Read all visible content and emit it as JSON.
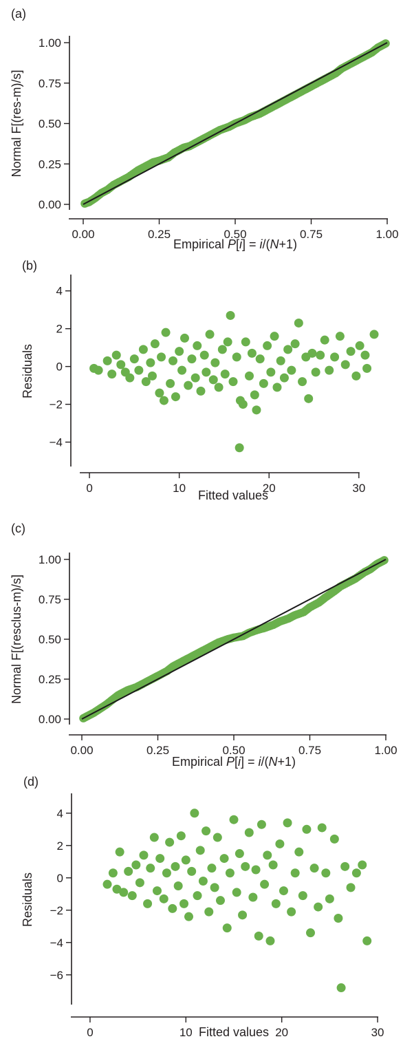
{
  "figure": {
    "accent_color": "#6ab04c",
    "line_color": "#1a1a1a",
    "axis_color": "#231f20"
  },
  "chart_data": [
    {
      "panel_label": "(a)",
      "type": "scatter",
      "xlabel": "Empirical P[i] = i/(N+1)",
      "ylabel": "Normal F[(res-m)/s]",
      "xlim": [
        0,
        1
      ],
      "ylim": [
        0,
        1
      ],
      "xticks": [
        "0.00",
        "0.25",
        "0.50",
        "0.75",
        "1.00"
      ],
      "yticks": [
        "0.00",
        "0.25",
        "0.50",
        "0.75",
        "1.00"
      ],
      "reference_line": [
        [
          0,
          0
        ],
        [
          1,
          1
        ]
      ],
      "series": [
        {
          "values": [
            [
              0.005,
              0.005
            ],
            [
              0.02,
              0.015
            ],
            [
              0.04,
              0.04
            ],
            [
              0.06,
              0.07
            ],
            [
              0.08,
              0.09
            ],
            [
              0.1,
              0.12
            ],
            [
              0.12,
              0.14
            ],
            [
              0.15,
              0.17
            ],
            [
              0.18,
              0.21
            ],
            [
              0.2,
              0.23
            ],
            [
              0.23,
              0.26
            ],
            [
              0.25,
              0.27
            ],
            [
              0.28,
              0.29
            ],
            [
              0.3,
              0.32
            ],
            [
              0.33,
              0.35
            ],
            [
              0.35,
              0.36
            ],
            [
              0.38,
              0.39
            ],
            [
              0.4,
              0.41
            ],
            [
              0.43,
              0.44
            ],
            [
              0.45,
              0.46
            ],
            [
              0.48,
              0.48
            ],
            [
              0.5,
              0.5
            ],
            [
              0.53,
              0.52
            ],
            [
              0.55,
              0.54
            ],
            [
              0.58,
              0.56
            ],
            [
              0.6,
              0.58
            ],
            [
              0.63,
              0.61
            ],
            [
              0.65,
              0.63
            ],
            [
              0.68,
              0.66
            ],
            [
              0.7,
              0.68
            ],
            [
              0.73,
              0.71
            ],
            [
              0.75,
              0.73
            ],
            [
              0.78,
              0.76
            ],
            [
              0.8,
              0.78
            ],
            [
              0.83,
              0.81
            ],
            [
              0.85,
              0.84
            ],
            [
              0.88,
              0.87
            ],
            [
              0.9,
              0.89
            ],
            [
              0.93,
              0.92
            ],
            [
              0.95,
              0.94
            ],
            [
              0.97,
              0.97
            ],
            [
              0.995,
              0.995
            ]
          ]
        }
      ]
    },
    {
      "panel_label": "(b)",
      "type": "scatter",
      "xlabel": "Fitted values",
      "ylabel": "Residuals",
      "xlim": [
        -1,
        33
      ],
      "ylim": [
        -5,
        4.5
      ],
      "xticks": [
        "0",
        "10",
        "20",
        "30"
      ],
      "yticks": [
        "−4",
        "−2",
        "0",
        "2",
        "4"
      ],
      "series": [
        {
          "values": [
            [
              0.5,
              -0.1
            ],
            [
              1,
              -0.2
            ],
            [
              2,
              0.3
            ],
            [
              2.5,
              -0.4
            ],
            [
              3,
              0.6
            ],
            [
              3.5,
              0.1
            ],
            [
              4,
              -0.3
            ],
            [
              4.5,
              -0.6
            ],
            [
              5,
              0.4
            ],
            [
              5.5,
              -0.2
            ],
            [
              6,
              0.9
            ],
            [
              6.3,
              -0.8
            ],
            [
              6.8,
              0.2
            ],
            [
              7,
              -0.5
            ],
            [
              7.3,
              1.2
            ],
            [
              7.8,
              -1.4
            ],
            [
              8,
              0.5
            ],
            [
              8.3,
              -1.8
            ],
            [
              8.5,
              1.8
            ],
            [
              9,
              -0.9
            ],
            [
              9.3,
              0.3
            ],
            [
              9.6,
              -1.6
            ],
            [
              10,
              0.8
            ],
            [
              10.3,
              -0.2
            ],
            [
              10.6,
              1.5
            ],
            [
              11,
              -1
            ],
            [
              11.4,
              0.4
            ],
            [
              11.8,
              -0.6
            ],
            [
              12,
              1.1
            ],
            [
              12.4,
              -1.3
            ],
            [
              12.8,
              0.6
            ],
            [
              13,
              -0.3
            ],
            [
              13.4,
              1.7
            ],
            [
              13.8,
              -0.7
            ],
            [
              14,
              0.2
            ],
            [
              14.4,
              -1.1
            ],
            [
              14.8,
              0.9
            ],
            [
              15.1,
              -0.4
            ],
            [
              15.4,
              1.3
            ],
            [
              15.7,
              2.7
            ],
            [
              16,
              -0.8
            ],
            [
              16.4,
              0.5
            ],
            [
              16.7,
              -4.3
            ],
            [
              16.8,
              -1.8
            ],
            [
              17.1,
              -2
            ],
            [
              17.4,
              1.3
            ],
            [
              17.8,
              -0.5
            ],
            [
              18.1,
              0.7
            ],
            [
              18.4,
              -1.5
            ],
            [
              18.6,
              -2.3
            ],
            [
              19,
              0.4
            ],
            [
              19.4,
              -0.9
            ],
            [
              19.8,
              1.1
            ],
            [
              20.2,
              -0.3
            ],
            [
              20.6,
              1.6
            ],
            [
              20.9,
              -1.1
            ],
            [
              21.3,
              0.3
            ],
            [
              21.7,
              -0.6
            ],
            [
              22.1,
              0.9
            ],
            [
              22.5,
              -0.2
            ],
            [
              22.9,
              1.2
            ],
            [
              23.3,
              2.3
            ],
            [
              23.7,
              -0.8
            ],
            [
              24.1,
              0.5
            ],
            [
              24.4,
              -1.7
            ],
            [
              24.8,
              0.7
            ],
            [
              25.2,
              -0.3
            ],
            [
              25.7,
              0.6
            ],
            [
              26.2,
              1.4
            ],
            [
              26.7,
              -0.2
            ],
            [
              27.3,
              0.5
            ],
            [
              27.9,
              1.6
            ],
            [
              28.5,
              0.1
            ],
            [
              29.1,
              0.8
            ],
            [
              29.7,
              -0.5
            ],
            [
              30.1,
              1.1
            ],
            [
              30.7,
              0.6
            ],
            [
              30.9,
              -0.1
            ],
            [
              31.7,
              1.7
            ]
          ]
        }
      ]
    },
    {
      "panel_label": "(c)",
      "type": "scatter",
      "xlabel": "Empirical P[i] = i/(N+1)",
      "ylabel": "Normal F[(resclus-m)/s]",
      "xlim": [
        0,
        1
      ],
      "ylim": [
        0,
        1
      ],
      "xticks": [
        "0.00",
        "0.25",
        "0.50",
        "0.75",
        "1.00"
      ],
      "yticks": [
        "0.00",
        "0.25",
        "0.50",
        "0.75",
        "1.00"
      ],
      "reference_line": [
        [
          0,
          0
        ],
        [
          1,
          1
        ]
      ],
      "series": [
        {
          "values": [
            [
              0.005,
              0.005
            ],
            [
              0.02,
              0.02
            ],
            [
              0.04,
              0.04
            ],
            [
              0.06,
              0.065
            ],
            [
              0.08,
              0.09
            ],
            [
              0.1,
              0.12
            ],
            [
              0.12,
              0.15
            ],
            [
              0.15,
              0.18
            ],
            [
              0.18,
              0.2
            ],
            [
              0.2,
              0.22
            ],
            [
              0.23,
              0.25
            ],
            [
              0.25,
              0.27
            ],
            [
              0.28,
              0.3
            ],
            [
              0.3,
              0.33
            ],
            [
              0.33,
              0.36
            ],
            [
              0.35,
              0.38
            ],
            [
              0.38,
              0.41
            ],
            [
              0.4,
              0.43
            ],
            [
              0.43,
              0.46
            ],
            [
              0.45,
              0.48
            ],
            [
              0.48,
              0.5
            ],
            [
              0.5,
              0.51
            ],
            [
              0.53,
              0.52
            ],
            [
              0.55,
              0.54
            ],
            [
              0.58,
              0.56
            ],
            [
              0.6,
              0.57
            ],
            [
              0.63,
              0.59
            ],
            [
              0.65,
              0.61
            ],
            [
              0.68,
              0.63
            ],
            [
              0.7,
              0.65
            ],
            [
              0.73,
              0.67
            ],
            [
              0.75,
              0.7
            ],
            [
              0.78,
              0.73
            ],
            [
              0.8,
              0.76
            ],
            [
              0.83,
              0.8
            ],
            [
              0.85,
              0.83
            ],
            [
              0.88,
              0.86
            ],
            [
              0.9,
              0.88
            ],
            [
              0.93,
              0.92
            ],
            [
              0.95,
              0.94
            ],
            [
              0.97,
              0.97
            ],
            [
              0.995,
              0.995
            ]
          ]
        }
      ]
    },
    {
      "panel_label": "(d)",
      "type": "scatter",
      "xlabel": "Fitted values",
      "ylabel": "Residuals",
      "xlim": [
        -1,
        31
      ],
      "ylim": [
        -7.5,
        4.8
      ],
      "xticks": [
        "0",
        "10",
        "20",
        "30"
      ],
      "yticks": [
        "−6",
        "−4",
        "−2",
        "0",
        "2",
        "4"
      ],
      "series": [
        {
          "values": [
            [
              1.8,
              -0.4
            ],
            [
              2.4,
              0.3
            ],
            [
              2.8,
              -0.7
            ],
            [
              3.1,
              1.6
            ],
            [
              3.5,
              -0.9
            ],
            [
              4,
              0.4
            ],
            [
              4.4,
              -1.1
            ],
            [
              4.8,
              0.8
            ],
            [
              5.2,
              -0.3
            ],
            [
              5.6,
              1.4
            ],
            [
              6,
              -1.6
            ],
            [
              6.3,
              0.6
            ],
            [
              6.7,
              2.5
            ],
            [
              7,
              -0.8
            ],
            [
              7.3,
              1.2
            ],
            [
              7.7,
              -1.3
            ],
            [
              8,
              0.3
            ],
            [
              8.3,
              2.2
            ],
            [
              8.6,
              -1.9
            ],
            [
              8.9,
              0.7
            ],
            [
              9.2,
              -0.5
            ],
            [
              9.5,
              2.6
            ],
            [
              9.8,
              -1.6
            ],
            [
              10,
              1.1
            ],
            [
              10.3,
              -2.4
            ],
            [
              10.6,
              0.4
            ],
            [
              10.9,
              4
            ],
            [
              11.2,
              -1.1
            ],
            [
              11.5,
              1.7
            ],
            [
              11.8,
              -0.2
            ],
            [
              12.1,
              2.9
            ],
            [
              12.4,
              -2.1
            ],
            [
              12.7,
              0.6
            ],
            [
              13,
              -0.6
            ],
            [
              13.3,
              2.5
            ],
            [
              13.6,
              -1.4
            ],
            [
              14,
              1.2
            ],
            [
              14.3,
              -3.1
            ],
            [
              14.6,
              0.3
            ],
            [
              15,
              3.6
            ],
            [
              15.3,
              -0.9
            ],
            [
              15.6,
              1.5
            ],
            [
              15.9,
              -2.3
            ],
            [
              16.2,
              0.7
            ],
            [
              16.6,
              2.8
            ],
            [
              17,
              -1.2
            ],
            [
              17.3,
              0.5
            ],
            [
              17.6,
              -3.6
            ],
            [
              17.9,
              3.3
            ],
            [
              18.2,
              -0.4
            ],
            [
              18.5,
              1.4
            ],
            [
              18.8,
              -3.9
            ],
            [
              19.1,
              0.8
            ],
            [
              19.4,
              -1.6
            ],
            [
              19.8,
              2.1
            ],
            [
              20.2,
              -0.8
            ],
            [
              20.6,
              3.4
            ],
            [
              21,
              -2.1
            ],
            [
              21.4,
              0.3
            ],
            [
              21.8,
              1.6
            ],
            [
              22.2,
              -1.1
            ],
            [
              22.6,
              3
            ],
            [
              23,
              -3.4
            ],
            [
              23.4,
              0.6
            ],
            [
              23.8,
              -1.8
            ],
            [
              24.2,
              3.1
            ],
            [
              24.6,
              0.3
            ],
            [
              25,
              -1.3
            ],
            [
              25.5,
              2.4
            ],
            [
              25.9,
              -2.5
            ],
            [
              26.2,
              -6.8
            ],
            [
              26.6,
              0.7
            ],
            [
              27.2,
              -0.6
            ],
            [
              27.8,
              0.3
            ],
            [
              28.4,
              0.8
            ],
            [
              28.9,
              -3.9
            ]
          ]
        }
      ]
    }
  ]
}
